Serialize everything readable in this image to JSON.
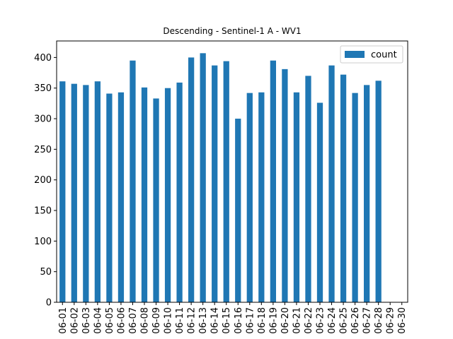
{
  "chart_data": {
    "type": "bar",
    "title": "Descending - Sentinel-1 A - WV1",
    "xlabel": "",
    "ylabel": "",
    "categories": [
      "06-01",
      "06-02",
      "06-03",
      "06-04",
      "06-05",
      "06-06",
      "06-07",
      "06-08",
      "06-09",
      "06-10",
      "06-11",
      "06-12",
      "06-13",
      "06-14",
      "06-15",
      "06-16",
      "06-17",
      "06-18",
      "06-19",
      "06-20",
      "06-21",
      "06-22",
      "06-23",
      "06-24",
      "06-25",
      "06-26",
      "06-27",
      "06-28",
      "06-29",
      "06-30"
    ],
    "series": [
      {
        "name": "count",
        "color": "#1f77b4",
        "values": [
          361,
          357,
          355,
          361,
          341,
          343,
          395,
          351,
          333,
          350,
          359,
          400,
          407,
          387,
          394,
          300,
          342,
          343,
          395,
          381,
          343,
          370,
          326,
          387,
          372,
          342,
          355,
          362,
          null,
          null
        ]
      }
    ],
    "ylim": [
      0,
      427
    ],
    "yticks": [
      0,
      50,
      100,
      150,
      200,
      250,
      300,
      350,
      400
    ],
    "grid": false,
    "legend_position": "top-right"
  }
}
